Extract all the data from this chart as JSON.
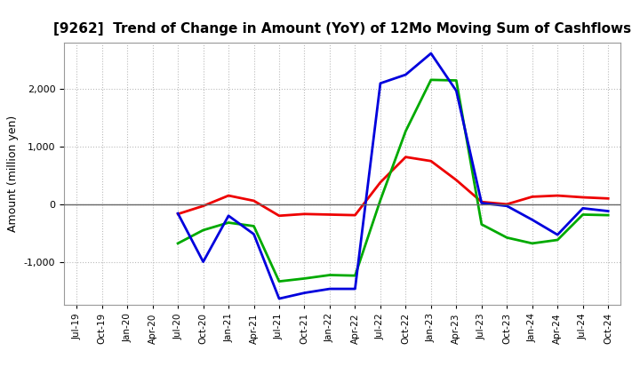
{
  "title": "[9262]  Trend of Change in Amount (YoY) of 12Mo Moving Sum of Cashflows",
  "ylabel": "Amount (million yen)",
  "background_color": "#ffffff",
  "plot_bg_color": "#ffffff",
  "grid_color": "#bbbbbb",
  "x_labels": [
    "Jul-19",
    "Oct-19",
    "Jan-20",
    "Apr-20",
    "Jul-20",
    "Oct-20",
    "Jan-21",
    "Apr-21",
    "Jul-21",
    "Oct-21",
    "Jan-22",
    "Apr-22",
    "Jul-22",
    "Oct-22",
    "Jan-23",
    "Apr-23",
    "Jul-23",
    "Oct-23",
    "Jan-24",
    "Apr-24",
    "Jul-24",
    "Oct-24"
  ],
  "operating": [
    null,
    null,
    null,
    null,
    -170,
    -30,
    150,
    60,
    -200,
    -170,
    -180,
    -190,
    380,
    820,
    750,
    420,
    40,
    0,
    130,
    150,
    120,
    100
  ],
  "investing": [
    null,
    null,
    null,
    null,
    -680,
    -450,
    -320,
    -380,
    -1340,
    -1290,
    -1230,
    -1240,
    70,
    1270,
    2160,
    2150,
    -350,
    -580,
    -680,
    -620,
    -180,
    -190
  ],
  "free": [
    null,
    null,
    null,
    null,
    -160,
    -1000,
    -200,
    -520,
    -1640,
    -1540,
    -1470,
    -1470,
    2100,
    2250,
    2620,
    1970,
    20,
    -30,
    -270,
    -530,
    -70,
    -120
  ],
  "operating_color": "#ee0000",
  "investing_color": "#00aa00",
  "free_color": "#0000dd",
  "ylim": [
    -1750,
    2800
  ],
  "yticks": [
    -1000,
    0,
    1000,
    2000
  ],
  "linewidth": 2.0,
  "title_fontsize": 11,
  "ylabel_fontsize": 9,
  "tick_labelsize": 8,
  "xtick_labelsize": 7.5,
  "legend_fontsize": 9
}
